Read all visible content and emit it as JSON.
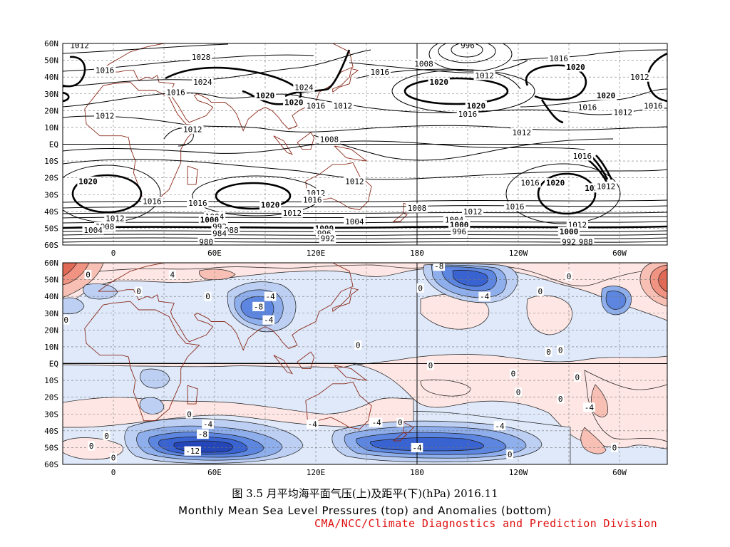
{
  "figure": {
    "caption_zh": "图 3.5   月平均海平面气压(上)及距平(下)(hPa)   2016.11",
    "caption_en": "Monthly Mean Sea Level Pressures (top) and Anomalies (bottom)",
    "source": "CMA/NCC/Climate Diagnostics and Prediction Division"
  },
  "axes": {
    "lat_labels": [
      "60N",
      "50N",
      "40N",
      "30N",
      "20N",
      "10N",
      "EQ",
      "10S",
      "20S",
      "30S",
      "40S",
      "50S",
      "60S"
    ],
    "lon_labels": [
      "0",
      "60E",
      "120E",
      "180",
      "120W",
      "60W"
    ]
  },
  "top_panel": {
    "contour_labels": [
      {
        "text": "1012",
        "lon": -20,
        "lat": 59
      },
      {
        "text": "1028",
        "lon": 52,
        "lat": 52
      },
      {
        "text": "1016",
        "lon": -5,
        "lat": 44
      },
      {
        "text": "1024",
        "lon": 53,
        "lat": 37
      },
      {
        "text": "1016",
        "lon": 37,
        "lat": 31
      },
      {
        "text": "1020",
        "lon": -68,
        "lat": 29,
        "bold": true
      },
      {
        "text": "1020",
        "lon": 90,
        "lat": 29,
        "bold": true
      },
      {
        "text": "1024",
        "lon": 113,
        "lat": 34
      },
      {
        "text": "1020",
        "lon": 107,
        "lat": 25,
        "bold": true
      },
      {
        "text": "1016",
        "lon": 120,
        "lat": 23
      },
      {
        "text": "1012",
        "lon": 136,
        "lat": 23
      },
      {
        "text": "1016",
        "lon": -40,
        "lat": 23
      },
      {
        "text": "1012",
        "lon": -5,
        "lat": 17
      },
      {
        "text": "1012",
        "lon": 47,
        "lat": 9
      },
      {
        "text": "1008",
        "lon": 128,
        "lat": 3
      },
      {
        "text": "996",
        "lon": -150,
        "lat": 59
      },
      {
        "text": "1008",
        "lon": -176,
        "lat": 48
      },
      {
        "text": "1016",
        "lon": -202,
        "lat": 43
      },
      {
        "text": "1012",
        "lon": -140,
        "lat": 41
      },
      {
        "text": "1016",
        "lon": -96,
        "lat": 51
      },
      {
        "text": "1020",
        "lon": -86,
        "lat": 46,
        "bold": true
      },
      {
        "text": "1012",
        "lon": -48,
        "lat": 40
      },
      {
        "text": "1020",
        "lon": -167,
        "lat": 37,
        "bold": true
      },
      {
        "text": "1020",
        "lon": -145,
        "lat": 23,
        "bold": true
      },
      {
        "text": "1016",
        "lon": -150,
        "lat": 18
      },
      {
        "text": "1016",
        "lon": -79,
        "lat": 22
      },
      {
        "text": "1012",
        "lon": -58,
        "lat": 19
      },
      {
        "text": "1012",
        "lon": -118,
        "lat": 7
      },
      {
        "text": "1016",
        "lon": -82,
        "lat": -7
      },
      {
        "text": "1012",
        "lon": 143,
        "lat": -22
      },
      {
        "text": "1020",
        "lon": -15,
        "lat": -22,
        "bold": true
      },
      {
        "text": "1016",
        "lon": -113,
        "lat": -23
      },
      {
        "text": "1020",
        "lon": -98,
        "lat": -23,
        "bold": true
      },
      {
        "text": "1020",
        "lon": -75,
        "lat": -26,
        "bold": true
      },
      {
        "text": "1012",
        "lon": -68,
        "lat": -25
      },
      {
        "text": "1012",
        "lon": 120,
        "lat": -29
      },
      {
        "text": "1016",
        "lon": 118,
        "lat": -33
      },
      {
        "text": "1016",
        "lon": 23,
        "lat": -34
      },
      {
        "text": "1016",
        "lon": 50,
        "lat": -35
      },
      {
        "text": "1020",
        "lon": 93,
        "lat": -36,
        "bold": true
      },
      {
        "text": "1008",
        "lon": -180,
        "lat": -38
      },
      {
        "text": "1016",
        "lon": -122,
        "lat": -37
      },
      {
        "text": "1012",
        "lon": -147,
        "lat": -40
      },
      {
        "text": "1012",
        "lon": 106,
        "lat": -41
      },
      {
        "text": "1012",
        "lon": 1,
        "lat": -44
      },
      {
        "text": "1008",
        "lon": -5,
        "lat": -49
      },
      {
        "text": "1004",
        "lon": -12,
        "lat": -51
      },
      {
        "text": "1004",
        "lon": 60,
        "lat": -43
      },
      {
        "text": "1000",
        "lon": 57,
        "lat": -45,
        "bold": true
      },
      {
        "text": "992",
        "lon": 63,
        "lat": -49
      },
      {
        "text": "988",
        "lon": 70,
        "lat": -51
      },
      {
        "text": "984",
        "lon": 63,
        "lat": -53
      },
      {
        "text": "1004",
        "lon": 143,
        "lat": -46
      },
      {
        "text": "1000",
        "lon": 125,
        "lat": -50,
        "bold": true
      },
      {
        "text": "996",
        "lon": 125,
        "lat": -53
      },
      {
        "text": "992",
        "lon": 127,
        "lat": -56
      },
      {
        "text": "1004",
        "lon": -158,
        "lat": -45
      },
      {
        "text": "1000",
        "lon": -155,
        "lat": -48,
        "bold": true
      },
      {
        "text": "996",
        "lon": -155,
        "lat": -52
      },
      {
        "text": "1012",
        "lon": -85,
        "lat": -48
      },
      {
        "text": "1000",
        "lon": -90,
        "lat": -52,
        "bold": true
      },
      {
        "text": "988",
        "lon": -80,
        "lat": -58
      },
      {
        "text": "992",
        "lon": -90,
        "lat": -58
      },
      {
        "text": "980",
        "lon": 55,
        "lat": -58
      }
    ]
  },
  "bottom_panel": {
    "colors": {
      "pos1": "#fde6e3",
      "pos2": "#f8c0b5",
      "pos3": "#f09382",
      "pos4": "#e06a55",
      "neg1": "#dfe9fa",
      "neg2": "#bdd0f4",
      "neg3": "#8eaeec",
      "neg4": "#5d86e0",
      "neg5": "#3a63d2",
      "neg6": "#2446b8"
    },
    "contour_labels": [
      {
        "text": "4",
        "lon": 35,
        "lat": 53
      },
      {
        "text": "0",
        "lon": -15,
        "lat": 53
      },
      {
        "text": "0",
        "lon": 15,
        "lat": 43
      },
      {
        "text": "0",
        "lon": 56,
        "lat": 40
      },
      {
        "text": "0",
        "lon": -28,
        "lat": 26
      },
      {
        "text": "-4",
        "lon": 93,
        "lat": 40
      },
      {
        "text": "-8",
        "lon": 86,
        "lat": 34
      },
      {
        "text": "-4",
        "lon": 92,
        "lat": 26
      },
      {
        "text": "-8",
        "lon": -167,
        "lat": 58
      },
      {
        "text": "0",
        "lon": -178,
        "lat": 45
      },
      {
        "text": "-4",
        "lon": -140,
        "lat": 40
      },
      {
        "text": "0",
        "lon": -90,
        "lat": 52
      },
      {
        "text": "0",
        "lon": -107,
        "lat": 43
      },
      {
        "text": "0",
        "lon": -102,
        "lat": 7
      },
      {
        "text": "0",
        "lon": -95,
        "lat": 8
      },
      {
        "text": "0",
        "lon": 145,
        "lat": 11
      },
      {
        "text": "-4",
        "lon": -78,
        "lat": -26
      },
      {
        "text": "0",
        "lon": -172,
        "lat": -1
      },
      {
        "text": "0",
        "lon": -85,
        "lat": -8
      },
      {
        "text": "0",
        "lon": -95,
        "lat": -21
      },
      {
        "text": "0",
        "lon": -123,
        "lat": -6
      },
      {
        "text": "0",
        "lon": -120,
        "lat": -17
      },
      {
        "text": "0",
        "lon": 45,
        "lat": -30
      },
      {
        "text": "0",
        "lon": 170,
        "lat": -35
      },
      {
        "text": "-4",
        "lon": -205,
        "lat": -35
      },
      {
        "text": "-4",
        "lon": 56,
        "lat": -36
      },
      {
        "text": "-8",
        "lon": 53,
        "lat": -42
      },
      {
        "text": "-12",
        "lon": 47,
        "lat": -52
      },
      {
        "text": "-4",
        "lon": 118,
        "lat": -36
      },
      {
        "text": "-4",
        "lon": 156,
        "lat": -35
      },
      {
        "text": "-4",
        "lon": -131,
        "lat": -37
      },
      {
        "text": "-4",
        "lon": 180,
        "lat": -50
      },
      {
        "text": "0",
        "lon": -125,
        "lat": -54
      },
      {
        "text": "0",
        "lon": -63,
        "lat": -50
      },
      {
        "text": "0",
        "lon": -13,
        "lat": -49
      },
      {
        "text": "0",
        "lon": 0,
        "lat": -56
      },
      {
        "text": "0",
        "lon": -4,
        "lat": -43
      }
    ]
  }
}
